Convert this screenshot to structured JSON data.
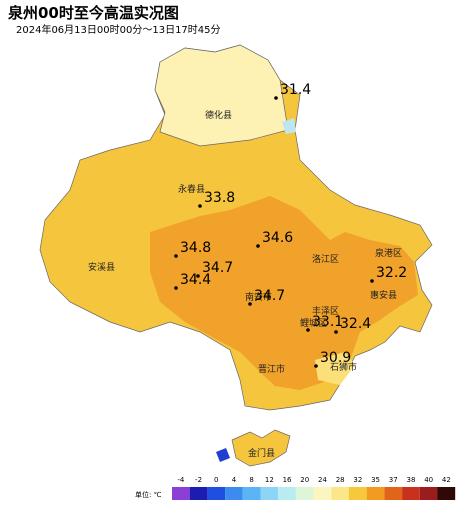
{
  "title": "泉州00时至今高温实况图",
  "subtitle": "2024年06月13日00时00分～13日17时45分",
  "places": [
    "德化县",
    "永春县",
    "安溪县",
    "洛江区",
    "泉港区",
    "惠安县",
    "南安市",
    "鲤城区",
    "丰泽区",
    "晋江市",
    "石狮市",
    "金门县"
  ],
  "stations": [
    31.4,
    33.8,
    34.8,
    34.6,
    34.7,
    34.4,
    34.7,
    32.2,
    33.1,
    32.4,
    30.9
  ],
  "legend": {
    "unit": "单位: ℃",
    "labels": [
      -4,
      -2,
      0,
      4,
      8,
      12,
      16,
      20,
      24,
      28,
      32,
      35,
      37,
      38,
      40,
      42
    ],
    "colors": [
      "#8b3fd6",
      "#1c1cb0",
      "#1f4fe0",
      "#3c8cf0",
      "#5ab4f5",
      "#8ed4f5",
      "#b8ecf0",
      "#dff5d8",
      "#fdf5c0",
      "#fbe78a",
      "#f6c83a",
      "#f19c20",
      "#e2641a",
      "#c8321c",
      "#9a1c1c",
      "#300808"
    ]
  }
}
